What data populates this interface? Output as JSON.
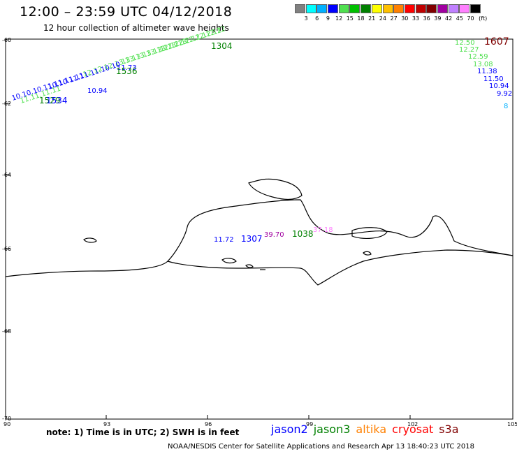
{
  "header": {
    "title": "12:00 – 23:59 UTC 04/12/2018",
    "subtitle": "12 hour collection of altimeter wave heights"
  },
  "colorbar": {
    "colors": [
      "#808080",
      "#00ffff",
      "#00b0ff",
      "#0000ff",
      "#50e050",
      "#00c000",
      "#008000",
      "#ffff00",
      "#ffc000",
      "#ff8000",
      "#ff0000",
      "#c00000",
      "#800000",
      "#a000a0",
      "#c080ff",
      "#ff80ff",
      "#000000"
    ],
    "labels": [
      "3",
      "6",
      "9",
      "12",
      "15",
      "18",
      "21",
      "24",
      "27",
      "30",
      "33",
      "36",
      "39",
      "42",
      "45",
      "70"
    ],
    "unit": "(ft)"
  },
  "axes": {
    "lat_labels": [
      "-60",
      "-62",
      "-64",
      "-66",
      "-68",
      "-70"
    ],
    "lon_labels": [
      "90",
      "93",
      "96",
      "99",
      "102",
      "105"
    ]
  },
  "annotations": {
    "left_track": [
      {
        "text": "10.94",
        "color": "#0000ff"
      },
      {
        "text": "11.73",
        "color": "#0000ff"
      },
      {
        "text": "1536",
        "color": "#008000"
      },
      {
        "text": "1529",
        "color": "#008000"
      },
      {
        "text": "1534",
        "color": "#0000ff"
      },
      {
        "text": "1304",
        "color": "#008000"
      }
    ],
    "right_track": [
      {
        "text": "12.50",
        "color": "#50e050"
      },
      {
        "text": "1607",
        "color": "#800000"
      },
      {
        "text": "12.27",
        "color": "#50e050"
      },
      {
        "text": "12.59",
        "color": "#50e050"
      },
      {
        "text": "13.08",
        "color": "#50e050"
      },
      {
        "text": "11.38",
        "color": "#0000ff"
      },
      {
        "text": "11.50",
        "color": "#0000ff"
      },
      {
        "text": "10.94",
        "color": "#0000ff"
      },
      {
        "text": "9.92",
        "color": "#0000ff"
      },
      {
        "text": "8",
        "color": "#00b0ff"
      }
    ],
    "center": [
      {
        "text": "11.72",
        "color": "#0000ff"
      },
      {
        "text": "1307",
        "color": "#0000ff"
      },
      {
        "text": "39.70",
        "color": "#a000a0"
      },
      {
        "text": "37.18",
        "color": "#ff80ff"
      },
      {
        "text": "1038",
        "color": "#008000"
      }
    ]
  },
  "footer": {
    "note": "note: 1) Time is in UTC; 2) SWH is in feet",
    "satellites": [
      {
        "name": "jason2",
        "color": "#0000ff"
      },
      {
        "name": "jason3",
        "color": "#008000"
      },
      {
        "name": "altika",
        "color": "#ff8000"
      },
      {
        "name": "cryosat",
        "color": "#ff0000"
      },
      {
        "name": "s3a",
        "color": "#800000"
      }
    ],
    "credit": "NOAA/NESDIS Center for Satellite Applications and Research     Apr 13 18:40:23 UTC 2018"
  }
}
